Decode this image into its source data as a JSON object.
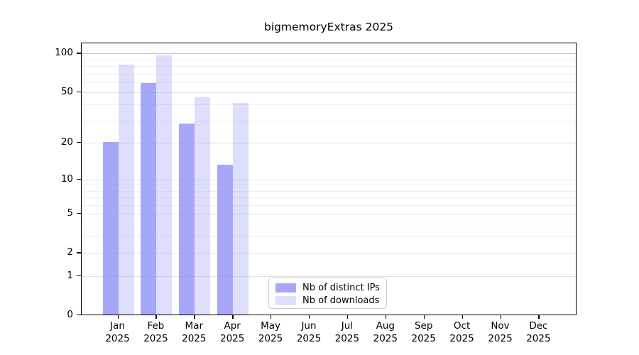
{
  "chart_data": {
    "type": "bar",
    "title": "bigmemoryExtras 2025",
    "year_label": "2025",
    "categories": [
      "Jan",
      "Feb",
      "Mar",
      "Apr",
      "May",
      "Jun",
      "Jul",
      "Aug",
      "Sep",
      "Oct",
      "Nov",
      "Dec"
    ],
    "series": [
      {
        "name": "Nb of distinct IPs",
        "color": "rgba(133,133,248,0.72)",
        "values": [
          20,
          58,
          28,
          13,
          0,
          0,
          0,
          0,
          0,
          0,
          0,
          0
        ]
      },
      {
        "name": "Nb of downloads",
        "color": "rgba(133,133,248,0.27)",
        "values": [
          81,
          96,
          45,
          41,
          0,
          0,
          0,
          0,
          0,
          0,
          0,
          0
        ]
      }
    ],
    "xlabel": "",
    "ylabel": "",
    "yscale": "log1p",
    "ylim": [
      0,
      120
    ],
    "yticks": [
      0,
      1,
      2,
      5,
      10,
      20,
      50,
      100
    ],
    "minor_gridlines": [
      3,
      4,
      6,
      7,
      8,
      9,
      30,
      40,
      60,
      70,
      80,
      90
    ],
    "grid": "on",
    "legend_position": "bottom-center",
    "colors": {
      "grid_top_line": "#c6c6c6",
      "grid_major": "#e2e2e2",
      "grid_minor": "#efefef",
      "spine": "#000000"
    }
  }
}
